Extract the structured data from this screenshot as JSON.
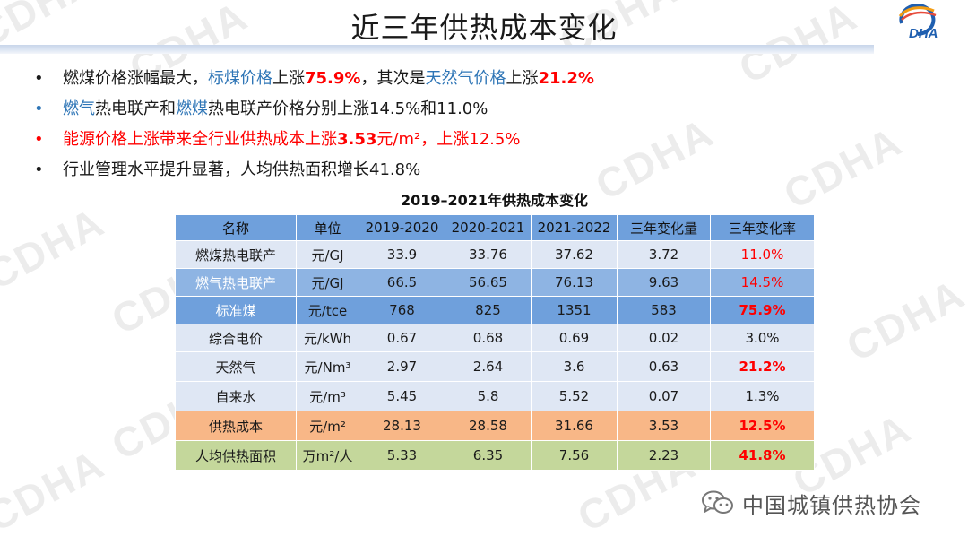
{
  "title": "近三年供热成本变化",
  "watermark": "CDHA",
  "logo_text": "DHA",
  "bullets": [
    {
      "parts": [
        {
          "text": "燃煤价格涨幅最大，",
          "style": ""
        },
        {
          "text": "标煤价格",
          "style": "blue"
        },
        {
          "text": "上涨",
          "style": ""
        },
        {
          "text": "75.9%",
          "style": "red bold"
        },
        {
          "text": "，其次是",
          "style": ""
        },
        {
          "text": "天然气价格",
          "style": "blue"
        },
        {
          "text": "上涨",
          "style": ""
        },
        {
          "text": "21.2%",
          "style": "red bold"
        }
      ]
    },
    {
      "parts": [
        {
          "text": "燃气",
          "style": "blue"
        },
        {
          "text": "热电联产和",
          "style": ""
        },
        {
          "text": "燃煤",
          "style": "blue"
        },
        {
          "text": "热电联产价格分别上涨14.5%和11.0%",
          "style": ""
        }
      ]
    },
    {
      "parts": [
        {
          "text": "能源价格上涨带来全行业供热成本上涨",
          "style": "red"
        },
        {
          "text": "3.53",
          "style": "red bold"
        },
        {
          "text": "元/m²，上涨12.5%",
          "style": "red"
        }
      ]
    },
    {
      "parts": [
        {
          "text": "行业管理水平提升显著，人均供热面积增长41.8%",
          "style": ""
        }
      ]
    }
  ],
  "table": {
    "caption": "2019–2021年供热成本变化",
    "headers": [
      "名称",
      "单位",
      "2019-2020",
      "2020-2021",
      "2021-2022",
      "三年变化量",
      "三年变化率"
    ],
    "rows": [
      {
        "name": "燃煤热电联产",
        "unit": "元/GJ",
        "y1": "33.9",
        "y2": "33.76",
        "y3": "37.62",
        "change": "3.72",
        "rate": "11.0%"
      },
      {
        "name": "燃气热电联产",
        "unit": "元/GJ",
        "y1": "66.5",
        "y2": "56.65",
        "y3": "76.13",
        "change": "9.63",
        "rate": "14.5%"
      },
      {
        "name": "标准煤",
        "unit": "元/tce",
        "y1": "768",
        "y2": "825",
        "y3": "1351",
        "change": "583",
        "rate": "75.9%"
      },
      {
        "name": "综合电价",
        "unit": "元/kWh",
        "y1": "0.67",
        "y2": "0.68",
        "y3": "0.69",
        "change": "0.02",
        "rate": "3.0%"
      },
      {
        "name": "天然气",
        "unit": "元/Nm³",
        "y1": "2.97",
        "y2": "2.64",
        "y3": "3.6",
        "change": "0.63",
        "rate": "21.2%"
      },
      {
        "name": "自来水",
        "unit": "元/m³",
        "y1": "5.45",
        "y2": "5.8",
        "y3": "5.52",
        "change": "0.07",
        "rate": "1.3%"
      },
      {
        "name": "供热成本",
        "unit": "元/m²",
        "y1": "28.13",
        "y2": "28.58",
        "y3": "31.66",
        "change": "3.53",
        "rate": "12.5%"
      },
      {
        "name": "人均供热面积",
        "unit": "万m²/人",
        "y1": "5.33",
        "y2": "6.35",
        "y3": "7.56",
        "change": "2.23",
        "rate": "41.8%"
      }
    ]
  },
  "footer": {
    "brand": "中国城镇供热协会",
    "icon": "wechat-icon"
  },
  "colors": {
    "header_blue": "#6fa0dc",
    "row_light": "#dfe7f4",
    "row_mid": "#8eb4e3",
    "row_orange": "#f8b787",
    "row_green": "#c4d79b",
    "accent_red": "#ff0000",
    "accent_blue": "#2e75b6"
  }
}
